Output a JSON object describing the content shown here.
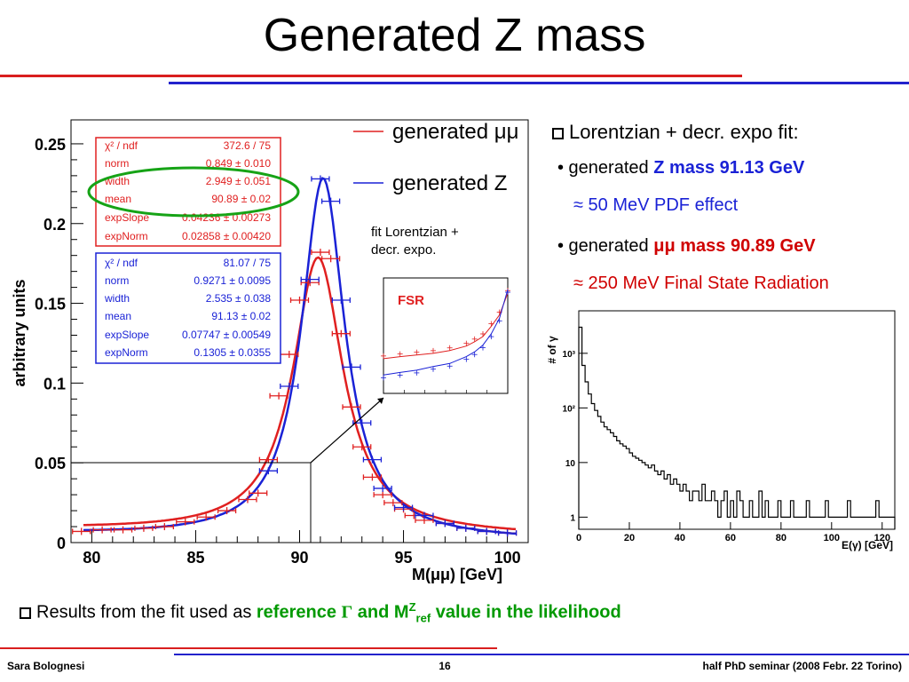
{
  "title": "Generated Z mass",
  "main_plot": {
    "ylabel": "arbitrary units",
    "xlabel": "M(μμ) [GeV]",
    "legend": [
      "generated μμ",
      "generated Z"
    ],
    "inset_caption_1": "fit Lorentzian +",
    "inset_caption_2": "decr. expo.",
    "inset_label": "FSR",
    "stats_red": {
      "chi2_label": "χ² / ndf",
      "chi2": "372.6 / 75",
      "norm_label": "norm",
      "norm": "0.849 ± 0.010",
      "width_label": "width",
      "width": "2.949 ± 0.051",
      "mean_label": "mean",
      "mean": "90.89 ± 0.02",
      "expSlope_label": "expSlope",
      "expSlope": "0.04236 ± 0.00273",
      "expNorm_label": "expNorm",
      "expNorm": "0.02858 ± 0.00420"
    },
    "stats_blue": {
      "chi2_label": "χ² / ndf",
      "chi2": "81.07 / 75",
      "norm_label": "norm",
      "norm": "0.9271 ± 0.0095",
      "width_label": "width",
      "width": "2.535 ± 0.038",
      "mean_label": "mean",
      "mean": "91.13 ± 0.02",
      "expSlope_label": "expSlope",
      "expSlope": "0.07747 ± 0.00549",
      "expNorm_label": "expNorm",
      "expNorm": "0.1305 ± 0.0355"
    }
  },
  "bullets": {
    "b1": "Lorentzian + decr. expo fit:",
    "b2_pre": "• generated ",
    "b2_em": "Z mass 91.13 GeV",
    "b3": "≈ 50 MeV PDF effect",
    "b4_pre": "• generated ",
    "b4_em": "μμ mass 90.89 GeV",
    "b5": "≈ 250 MeV Final State Radiation"
  },
  "side_plot": {
    "ylabel": "# of γ",
    "xlabel": "E(γ)  [GeV]"
  },
  "bottom": {
    "pre": "Results from the fit used as ",
    "em1": "reference ",
    "gamma": "Γ",
    "em2": " and M",
    "sup": "Z",
    "sub": "ref",
    "em3": " value in the likelihood"
  },
  "footer": {
    "left": "Sara Bolognesi",
    "center": "16",
    "right": "half PhD seminar (2008 Febr. 22 Torino)"
  },
  "colors": {
    "red": "#e02020",
    "blue": "#1a22d6",
    "green": "#16a316",
    "rule_red": "#d91f1f",
    "rule_blue": "#2222cc"
  },
  "chart_data": [
    {
      "type": "line",
      "xlim": [
        79,
        101
      ],
      "ylim": [
        0,
        0.265
      ],
      "xticks": [
        80,
        85,
        90,
        95,
        100
      ],
      "yticks": [
        0,
        0.05,
        0.1,
        0.15,
        0.2,
        0.25
      ],
      "ytick_labels": [
        "0",
        "0.05",
        "0.1",
        "0.15",
        "0.2",
        "0.25"
      ],
      "series": [
        {
          "name": "generated μμ",
          "color": "#e02020",
          "x": [
            79.5,
            80.5,
            81.5,
            82.5,
            83.5,
            84.5,
            85.5,
            86.5,
            87.5,
            88.0,
            88.5,
            89.0,
            89.5,
            90.0,
            90.5,
            91.0,
            91.5,
            92.0,
            92.5,
            93.0,
            93.5,
            94.0,
            94.5,
            95.0,
            95.5,
            96.0,
            97.0,
            98.0,
            99.0,
            100.0
          ],
          "y": [
            0.007,
            0.008,
            0.008,
            0.009,
            0.01,
            0.013,
            0.016,
            0.02,
            0.027,
            0.031,
            0.052,
            0.092,
            0.118,
            0.152,
            0.163,
            0.182,
            0.178,
            0.131,
            0.085,
            0.06,
            0.041,
            0.03,
            0.025,
            0.021,
            0.017,
            0.014,
            0.012,
            0.009,
            0.007,
            0.006
          ]
        },
        {
          "name": "generated Z",
          "color": "#1a22d6",
          "x": [
            88.5,
            89.5,
            90.5,
            91.0,
            91.5,
            92.0,
            92.5,
            93.0,
            93.5,
            94.0,
            95.0,
            96.0,
            97.0,
            98.0,
            99.0,
            100.0
          ],
          "y": [
            0.045,
            0.098,
            0.165,
            0.228,
            0.214,
            0.152,
            0.11,
            0.075,
            0.052,
            0.034,
            0.022,
            0.017,
            0.012,
            0.009,
            0.007,
            0.006
          ]
        }
      ]
    },
    {
      "type": "line",
      "title": "FSR",
      "xlim": [
        75,
        90
      ],
      "ylim_log": [
        1,
        1000
      ],
      "series": [
        {
          "name": "μμ",
          "color": "#e02020",
          "x": [
            75,
            77,
            79,
            81,
            83,
            85,
            86,
            87,
            88,
            89,
            90
          ],
          "y": [
            8,
            9,
            10,
            11,
            13,
            17,
            22,
            30,
            55,
            110,
            400
          ]
        },
        {
          "name": "Z",
          "color": "#1a22d6",
          "x": [
            75,
            77,
            79,
            81,
            83,
            85,
            86,
            87,
            88,
            89,
            90
          ],
          "y": [
            3,
            3.5,
            4,
            5,
            6,
            9,
            12,
            18,
            35,
            90,
            500
          ]
        }
      ]
    },
    {
      "type": "histogram",
      "xlabel": "E(γ)  [GeV]",
      "ylabel": "# of γ",
      "xlim": [
        0,
        125
      ],
      "xticks": [
        0,
        20,
        40,
        60,
        80,
        100,
        120
      ],
      "yscale": "log",
      "ylim": [
        0.6,
        6000
      ],
      "ytick_labels": [
        "1",
        "10",
        "10²",
        "10³"
      ],
      "bin_width": 1.25,
      "values": [
        3000,
        600,
        300,
        180,
        120,
        90,
        70,
        55,
        45,
        40,
        35,
        30,
        25,
        22,
        20,
        18,
        15,
        13,
        12,
        11,
        10,
        9,
        8,
        9,
        7,
        6,
        7,
        5,
        6,
        4,
        5,
        4,
        3,
        4,
        3,
        2,
        3,
        3,
        2,
        4,
        2,
        2,
        3,
        2,
        1,
        2,
        3,
        1,
        2,
        1,
        3,
        2,
        1,
        1,
        2,
        1,
        1,
        3,
        1,
        2,
        1,
        1,
        1,
        2,
        1,
        1,
        1,
        2,
        1,
        1,
        1,
        1,
        2,
        1,
        1,
        1,
        1,
        1,
        2,
        1,
        1,
        1,
        1,
        1,
        1,
        2,
        1,
        1,
        1,
        1,
        1,
        1,
        1,
        1,
        2,
        1,
        1,
        1,
        1,
        1
      ]
    }
  ]
}
